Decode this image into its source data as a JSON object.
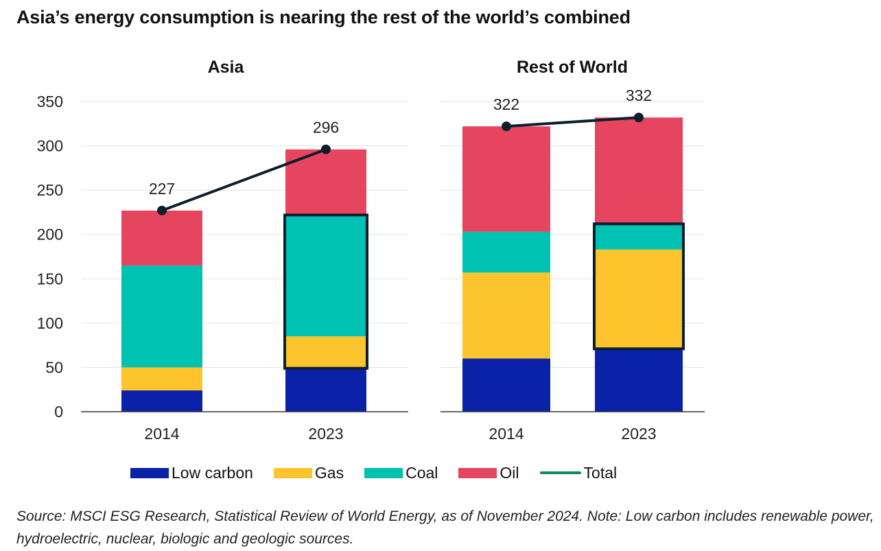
{
  "header": {
    "title": "Asia’s energy consumption is nearing the rest of the world’s combined"
  },
  "colors": {
    "low_carbon": "#0a22a8",
    "gas": "#fdc42d",
    "coal": "#00c2b2",
    "oil": "#e5455f",
    "total": "#0d1e2e",
    "highlight": "#0d1e2e"
  },
  "chart_data": {
    "type": "bar",
    "stacked": true,
    "ylim": [
      0,
      350
    ],
    "yticks": [
      "0",
      "50",
      "100",
      "150",
      "200",
      "250",
      "300",
      "350"
    ],
    "grid": true,
    "legend_position": "bottom",
    "series_names": [
      "Low carbon",
      "Gas",
      "Coal",
      "Oil",
      "Total"
    ],
    "panels": [
      {
        "title": "Asia",
        "categories": [
          "2014",
          "2023"
        ],
        "series": [
          {
            "name": "Low carbon",
            "values": [
              24,
              49
            ]
          },
          {
            "name": "Gas",
            "values": [
              26,
              36
            ]
          },
          {
            "name": "Coal",
            "values": [
              115,
              137
            ]
          },
          {
            "name": "Oil",
            "values": [
              62,
              74
            ]
          }
        ],
        "total": [
          227,
          296
        ],
        "total_labels": [
          "227",
          "296"
        ],
        "highlight": {
          "category_index": 1,
          "from": 49,
          "to": 222
        }
      },
      {
        "title": "Rest of World",
        "categories": [
          "2014",
          "2023"
        ],
        "series": [
          {
            "name": "Low carbon",
            "values": [
              60,
              71
            ]
          },
          {
            "name": "Gas",
            "values": [
              97,
              112
            ]
          },
          {
            "name": "Coal",
            "values": [
              46,
              29
            ]
          },
          {
            "name": "Oil",
            "values": [
              119,
              120
            ]
          }
        ],
        "total": [
          322,
          332
        ],
        "total_labels": [
          "322",
          "332"
        ],
        "highlight": {
          "category_index": 1,
          "from": 71,
          "to": 212
        }
      }
    ]
  },
  "legend": {
    "items": [
      "Low carbon",
      "Gas",
      "Coal",
      "Oil",
      "Total"
    ]
  },
  "source": "Source: MSCI ESG Research, Statistical Review of World Energy, as of November 2024. Note: Low carbon includes renewable power, hydroelectric, nuclear, biologic and geologic sources."
}
